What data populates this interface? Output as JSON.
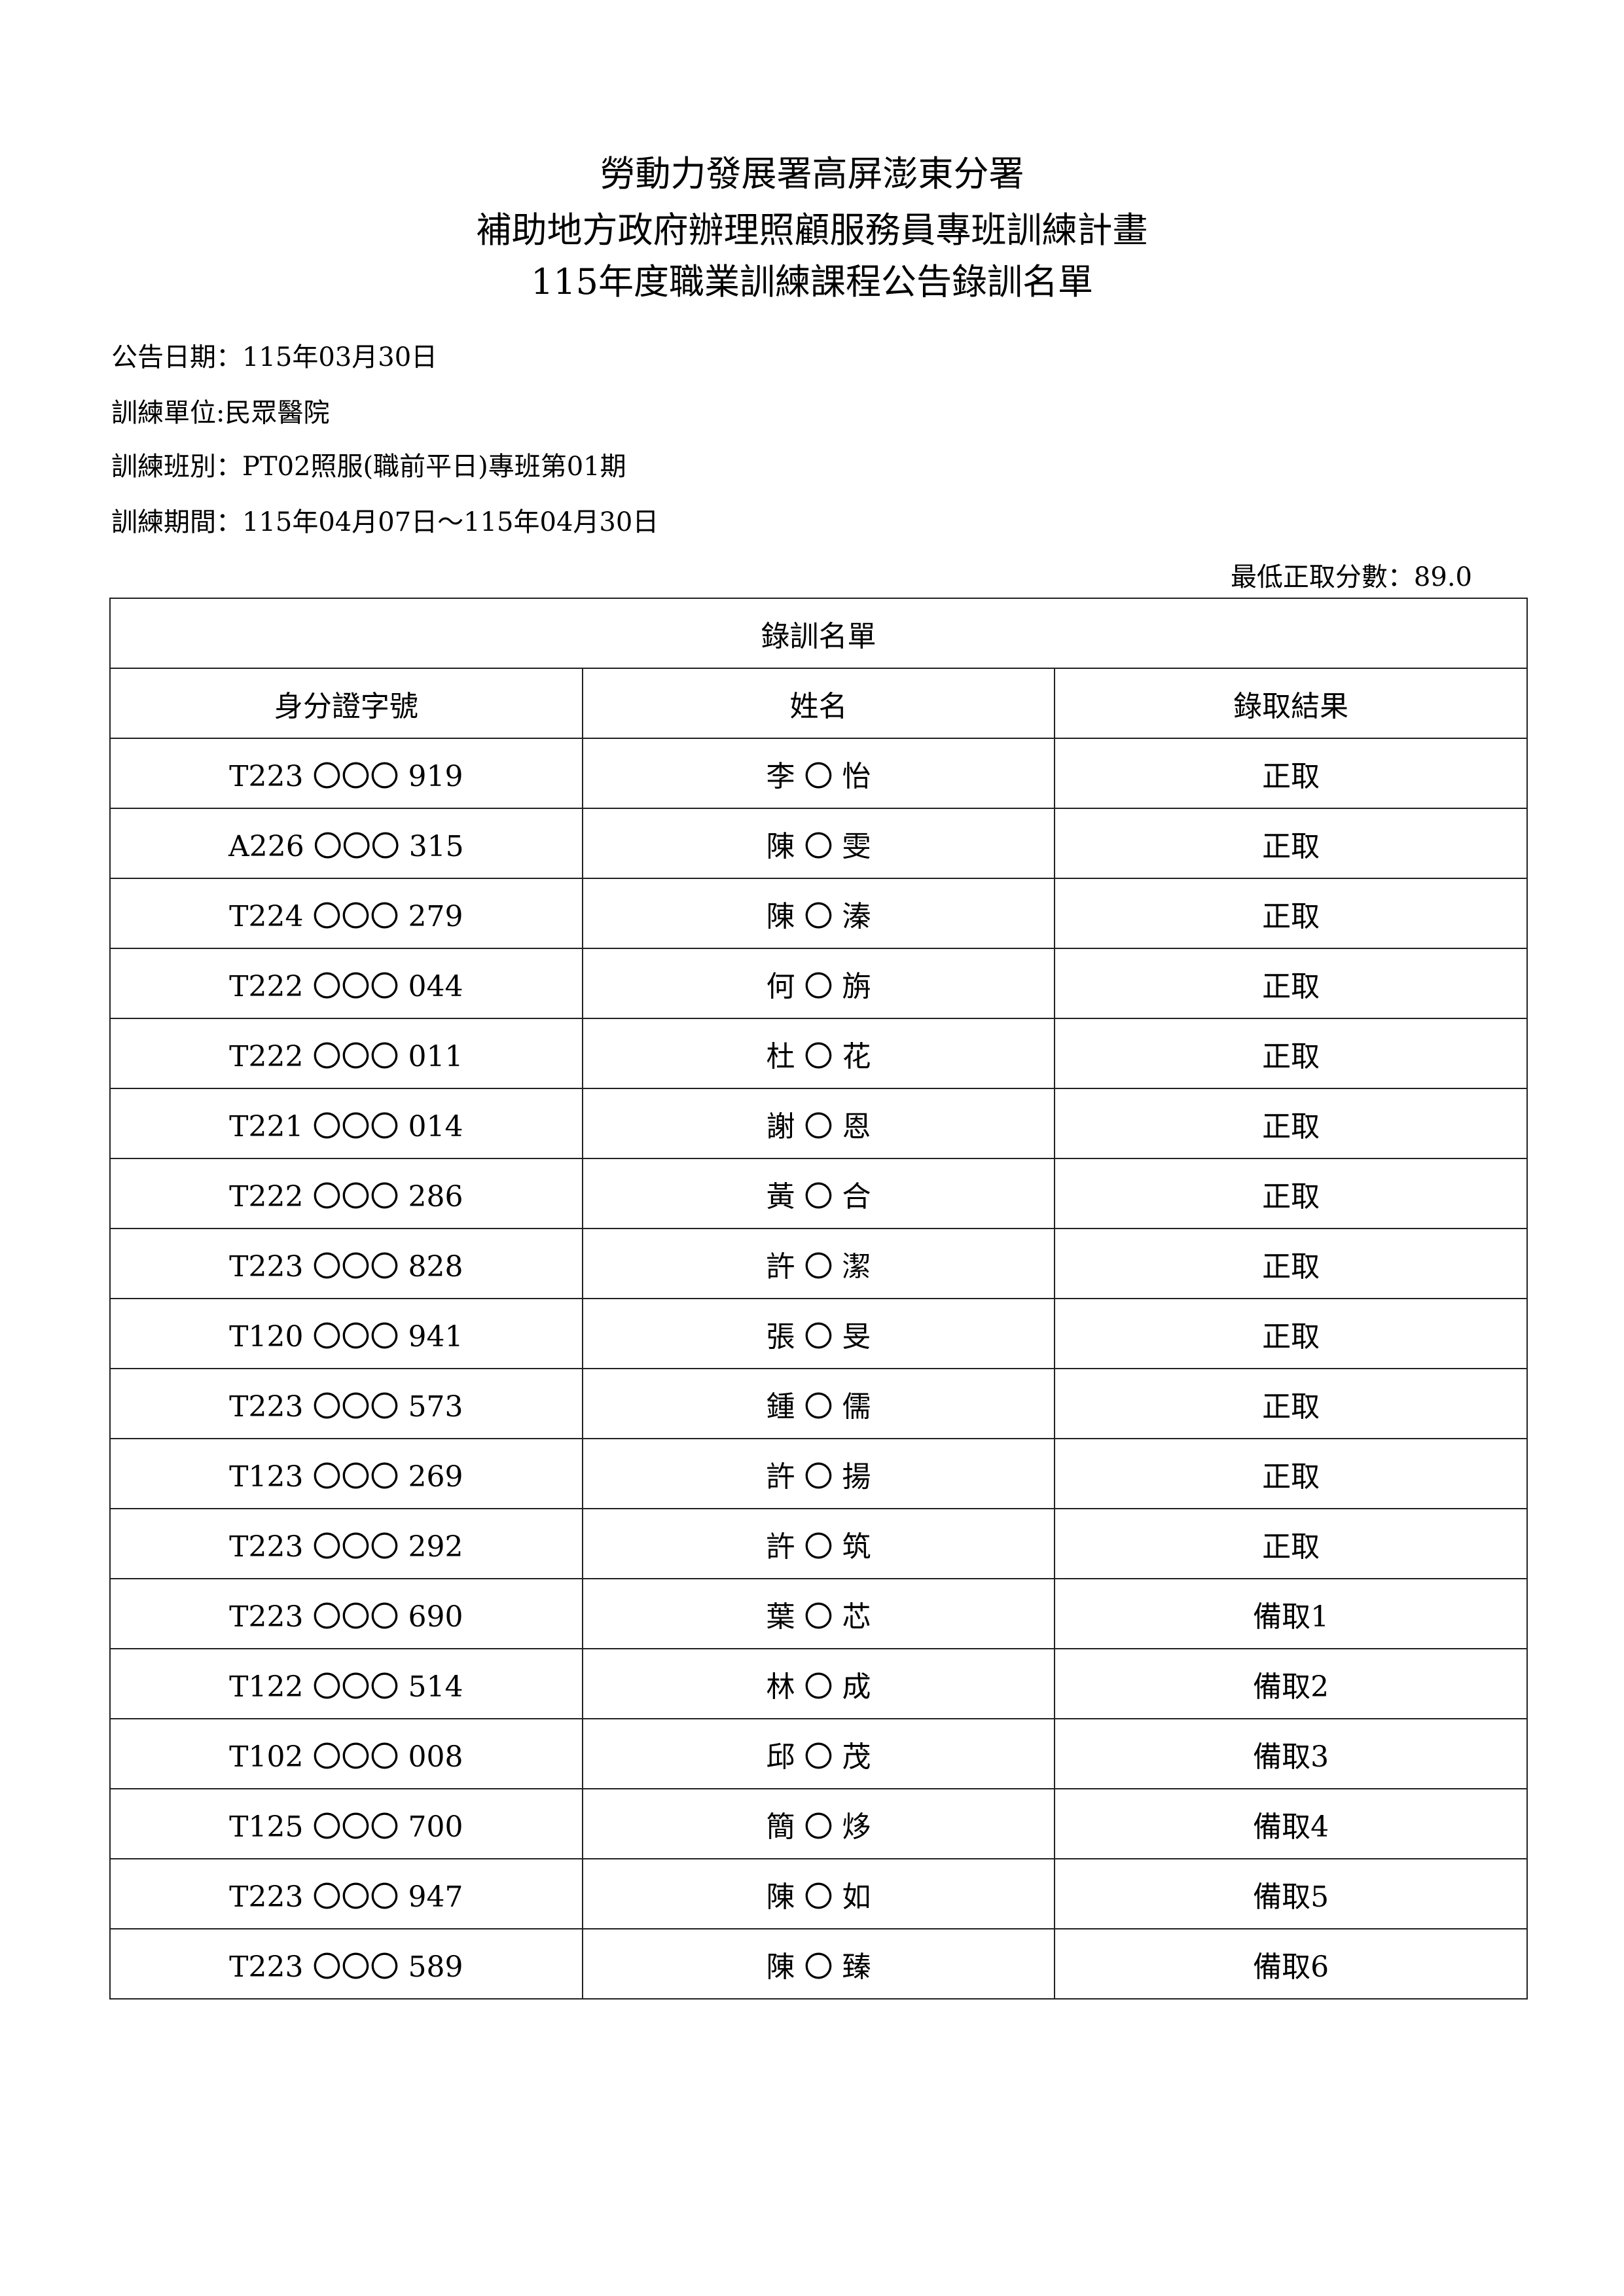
{
  "header": {
    "title_lines": [
      "勞動力發展署高屏澎東分署",
      "補助地方政府辦理照顧服務員專班訓練計畫",
      "115年度職業訓練課程公告錄訓名單"
    ]
  },
  "info": {
    "announce_date": "公告日期：115年03月30日",
    "training_unit": "訓練單位:民眾醫院",
    "training_class": "訓練班別：PT02照服(職前平日)專班第01期",
    "training_period": "訓練期間：115年04月07日～115年04月30日",
    "min_score": "最低正取分數：89.0"
  },
  "table": {
    "caption": "錄訓名單",
    "columns": [
      "身分證字號",
      "姓名",
      "錄取結果"
    ],
    "rows": [
      [
        "T223 〇〇〇 919",
        "李 〇 怡",
        "正取"
      ],
      [
        "A226 〇〇〇 315",
        "陳 〇 雯",
        "正取"
      ],
      [
        "T224 〇〇〇 279",
        "陳 〇 溱",
        "正取"
      ],
      [
        "T222 〇〇〇 044",
        "何 〇 旃",
        "正取"
      ],
      [
        "T222 〇〇〇 011",
        "杜 〇 花",
        "正取"
      ],
      [
        "T221 〇〇〇 014",
        "謝 〇 恩",
        "正取"
      ],
      [
        "T222 〇〇〇 286",
        "黃 〇 合",
        "正取"
      ],
      [
        "T223 〇〇〇 828",
        "許 〇 潔",
        "正取"
      ],
      [
        "T120 〇〇〇 941",
        "張 〇 旻",
        "正取"
      ],
      [
        "T223 〇〇〇 573",
        "鍾 〇 儒",
        "正取"
      ],
      [
        "T123 〇〇〇 269",
        "許 〇 揚",
        "正取"
      ],
      [
        "T223 〇〇〇 292",
        "許 〇 筑",
        "正取"
      ],
      [
        "T223 〇〇〇 690",
        "葉 〇 芯",
        "備取1"
      ],
      [
        "T122 〇〇〇 514",
        "林 〇 成",
        "備取2"
      ],
      [
        "T102 〇〇〇 008",
        "邱 〇 茂",
        "備取3"
      ],
      [
        "T125 〇〇〇 700",
        "簡 〇 㶴",
        "備取4"
      ],
      [
        "T223 〇〇〇 947",
        "陳 〇 如",
        "備取5"
      ],
      [
        "T223 〇〇〇 589",
        "陳 〇 臻",
        "備取6"
      ]
    ]
  }
}
